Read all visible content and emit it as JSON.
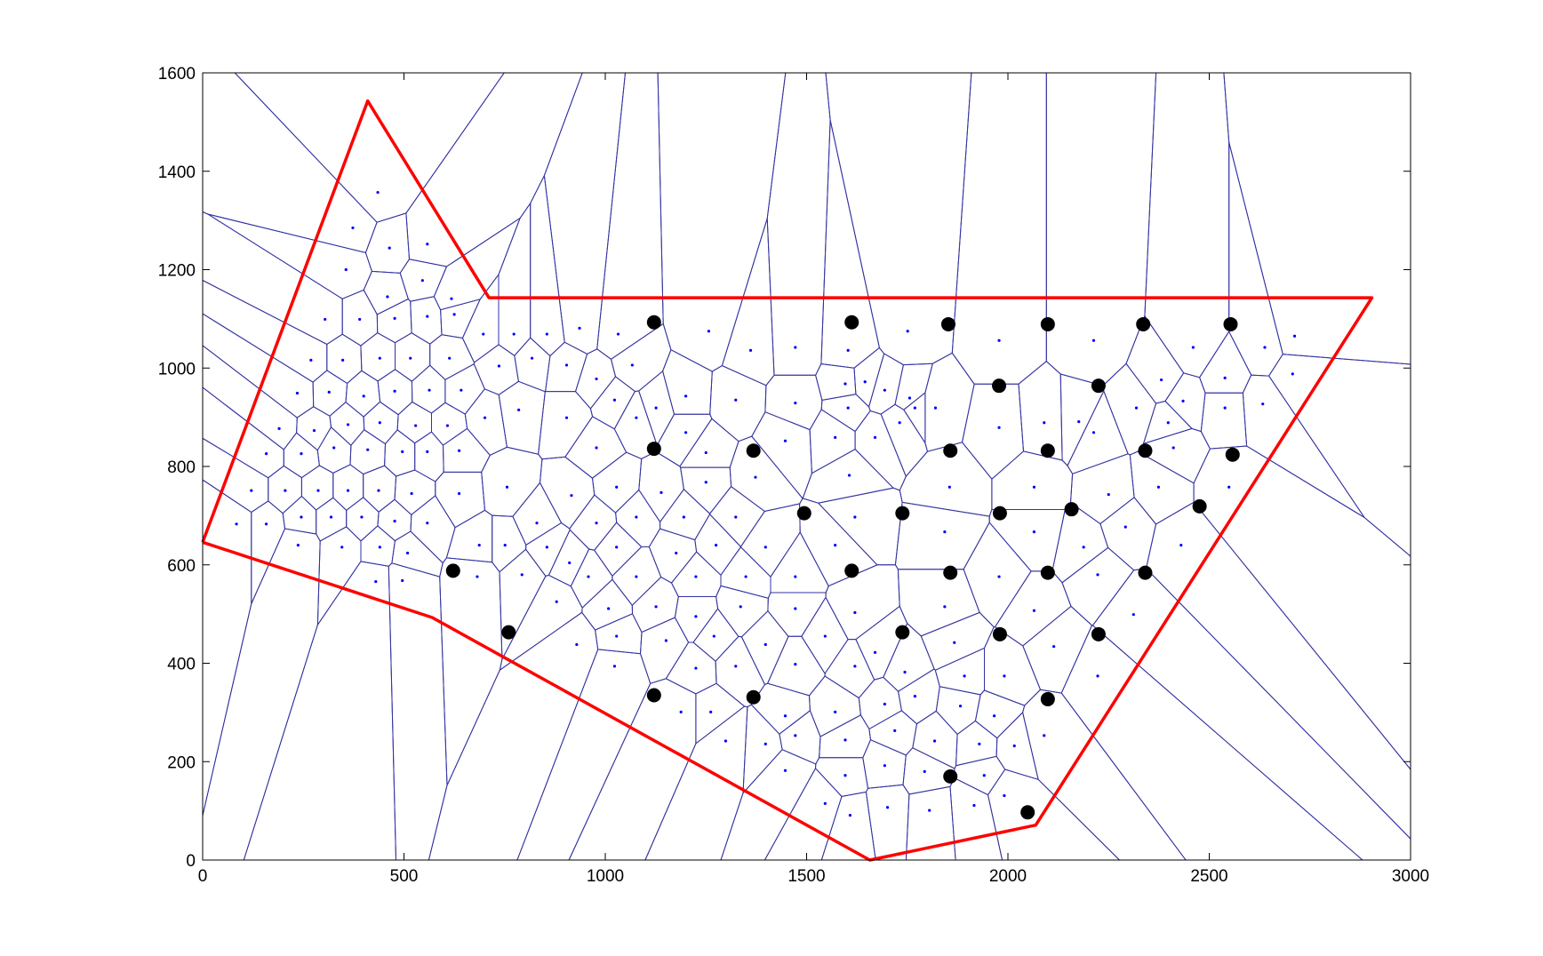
{
  "chart_data": {
    "type": "scatter",
    "xlim": [
      0,
      3000
    ],
    "ylim": [
      0,
      1600
    ],
    "xticks": [
      0,
      500,
      1000,
      1500,
      2000,
      2500,
      3000
    ],
    "yticks": [
      0,
      200,
      400,
      600,
      800,
      1000,
      1200,
      1400,
      1600
    ],
    "series": [
      {
        "type": "voronoi",
        "color": "#0000ff",
        "edge_color": "#3333a0",
        "x": [
          435,
          373,
          464,
          558,
          356,
          459,
          546,
          618,
          304,
          390,
          477,
          558,
          625,
          269,
          348,
          440,
          516,
          613,
          697,
          773,
          855,
          936,
          1032,
          235,
          314,
          400,
          477,
          563,
          642,
          736,
          818,
          904,
          978,
          1067,
          1257,
          1361,
          1472,
          1603,
          1751,
          1978,
          2213,
          2460,
          2638,
          2712,
          2707,
          2539,
          2381,
          190,
          277,
          361,
          440,
          529,
          608,
          701,
          785,
          904,
          1023,
          1126,
          1200,
          1324,
          1472,
          1596,
          1645,
          1694,
          1756,
          1603,
          1820,
          1978,
          2090,
          2176,
          2319,
          2435,
          2398,
          2633,
          2539,
          158,
          245,
          326,
          410,
          496,
          558,
          637,
          978,
          1077,
          1200,
          1250,
          1447,
          1571,
          1670,
          1731,
          1769,
          2213,
          2411,
          121,
          205,
          287,
          361,
          437,
          519,
          637,
          756,
          916,
          1028,
          1139,
          1250,
          1373,
          1606,
          1855,
          2065,
          2250,
          2374,
          2549,
          84,
          158,
          245,
          319,
          395,
          477,
          558,
          830,
          978,
          1077,
          1195,
          1324,
          1620,
          1843,
          2065,
          2292,
          237,
          346,
          440,
          509,
          687,
          751,
          855,
          911,
          1028,
          1176,
          1275,
          1398,
          1571,
          2188,
          2430,
          430,
          496,
          682,
          793,
          958,
          1077,
          1225,
          1349,
          1472,
          1978,
          2223,
          879,
          1008,
          1126,
          1225,
          1336,
          1472,
          1620,
          1843,
          2065,
          2312,
          929,
          1028,
          1151,
          1270,
          1398,
          1546,
          1670,
          1867,
          2114,
          1023,
          1225,
          1324,
          1472,
          1620,
          1744,
          1892,
          1991,
          2223,
          1188,
          1262,
          1447,
          1571,
          1694,
          1769,
          1882,
          1966,
          2090,
          1299,
          1398,
          1472,
          1596,
          1719,
          1818,
          1929,
          2016,
          1447,
          1546,
          1596,
          1694,
          1793,
          1941,
          1608,
          1701,
          1805,
          1916,
          1991
        ],
        "y": [
          1357,
          1285,
          1244,
          1252,
          1200,
          1145,
          1178,
          1141,
          1099,
          1099,
          1101,
          1105,
          1109,
          1016,
          1016,
          1020,
          1020,
          1020,
          1069,
          1069,
          1069,
          1081,
          1069,
          949,
          951,
          943,
          953,
          955,
          955,
          1004,
          1020,
          1006,
          978,
          1006,
          1075,
          1036,
          1042,
          1036,
          1075,
          1056,
          1056,
          1042,
          1042,
          1065,
          988,
          980,
          976,
          877,
          873,
          885,
          889,
          883,
          883,
          899,
          915,
          899,
          935,
          919,
          943,
          935,
          929,
          968,
          972,
          955,
          939,
          919,
          919,
          879,
          889,
          891,
          919,
          933,
          889,
          927,
          919,
          826,
          826,
          838,
          834,
          830,
          830,
          832,
          838,
          899,
          869,
          828,
          852,
          859,
          859,
          889,
          919,
          869,
          838,
          751,
          751,
          751,
          751,
          751,
          745,
          745,
          758,
          741,
          758,
          747,
          768,
          778,
          782,
          758,
          758,
          743,
          758,
          758,
          683,
          683,
          697,
          697,
          697,
          689,
          685,
          685,
          685,
          697,
          697,
          697,
          697,
          667,
          667,
          677,
          640,
          636,
          636,
          624,
          640,
          640,
          636,
          604,
          636,
          624,
          640,
          636,
          640,
          636,
          640,
          566,
          568,
          576,
          580,
          576,
          576,
          576,
          576,
          576,
          576,
          580,
          525,
          511,
          515,
          495,
          515,
          511,
          503,
          515,
          507,
          499,
          438,
          455,
          446,
          455,
          438,
          455,
          422,
          442,
          434,
          394,
          390,
          394,
          398,
          394,
          382,
          374,
          374,
          374,
          301,
          301,
          293,
          301,
          317,
          333,
          313,
          293,
          253,
          242,
          236,
          253,
          244,
          263,
          242,
          236,
          232,
          182,
          115,
          172,
          192,
          180,
          172,
          91,
          107,
          101,
          111,
          131
        ]
      },
      {
        "type": "scatter",
        "color": "#000000",
        "x": [
          1121,
          1612,
          1852,
          2099,
          2336,
          2553,
          1978,
          2225,
          1121,
          1368,
          1857,
          2099,
          2341,
          2558,
          1494,
          1738,
          1980,
          2158,
          2476,
          622,
          1612,
          1857,
          2099,
          2341,
          760,
          1738,
          1980,
          2225,
          1121,
          1368,
          2099,
          1857,
          2049
        ],
        "y": [
          1093,
          1093,
          1089,
          1089,
          1089,
          1089,
          964,
          964,
          836,
          832,
          832,
          832,
          832,
          824,
          705,
          705,
          705,
          713,
          719,
          588,
          588,
          584,
          584,
          584,
          463,
          463,
          459,
          459,
          335,
          331,
          327,
          170,
          97
        ]
      },
      {
        "type": "line",
        "color": "#ff0000",
        "x": [
          0,
          410,
          711,
          2904,
          2069,
          1657,
          570,
          0
        ],
        "y": [
          646,
          1543,
          1143,
          1143,
          71,
          0,
          493,
          646
        ]
      }
    ]
  }
}
